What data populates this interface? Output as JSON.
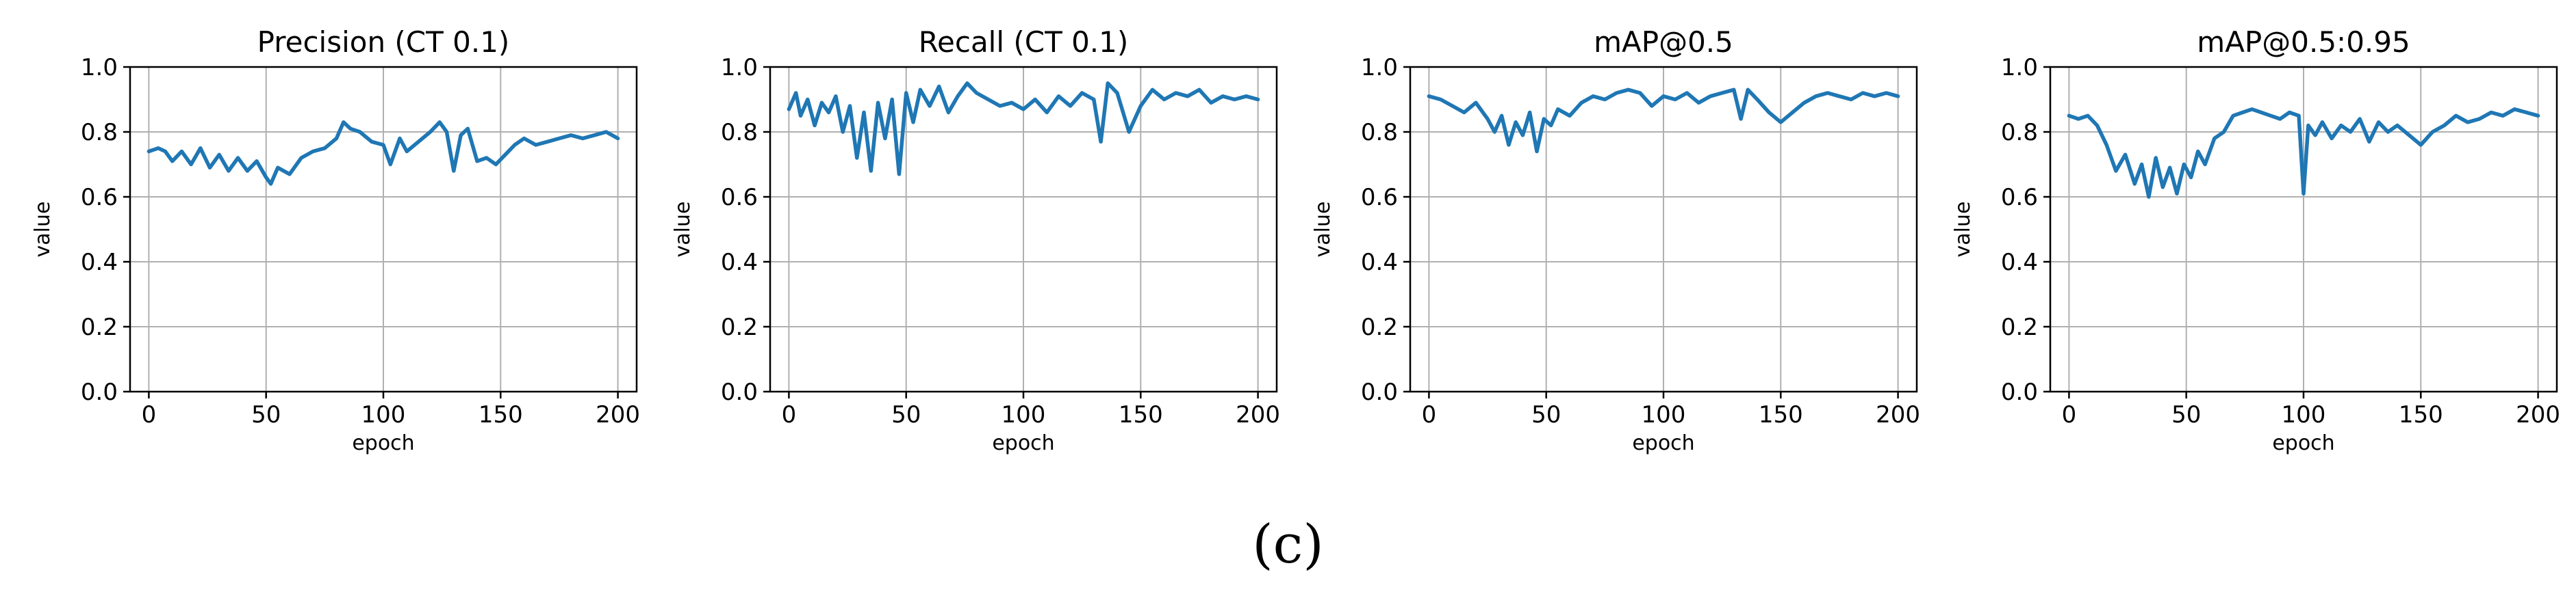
{
  "caption": "(c)",
  "colors": {
    "line": "#1f77b4",
    "grid": "#b0b0b0",
    "axis": "#000000"
  },
  "chart_data": [
    {
      "type": "line",
      "title": "Precision (CT 0.1)",
      "xlabel": "epoch",
      "ylabel": "value",
      "xlim": [
        -8,
        208
      ],
      "ylim": [
        0.0,
        1.0
      ],
      "xticks": [
        0,
        50,
        100,
        150,
        200
      ],
      "yticks": [
        0.0,
        0.2,
        0.4,
        0.6,
        0.8,
        1.0
      ],
      "grid": true,
      "series": [
        {
          "name": "Precision",
          "x": [
            0,
            4,
            7,
            10,
            14,
            18,
            22,
            26,
            30,
            34,
            38,
            42,
            46,
            50,
            52,
            55,
            60,
            65,
            70,
            75,
            80,
            83,
            86,
            90,
            95,
            100,
            103,
            107,
            110,
            115,
            120,
            124,
            127,
            130,
            133,
            136,
            140,
            144,
            148,
            152,
            156,
            160,
            165,
            170,
            175,
            180,
            185,
            190,
            195,
            200
          ],
          "values": [
            0.74,
            0.75,
            0.74,
            0.71,
            0.74,
            0.7,
            0.75,
            0.69,
            0.73,
            0.68,
            0.72,
            0.68,
            0.71,
            0.66,
            0.64,
            0.69,
            0.67,
            0.72,
            0.74,
            0.75,
            0.78,
            0.83,
            0.81,
            0.8,
            0.77,
            0.76,
            0.7,
            0.78,
            0.74,
            0.77,
            0.8,
            0.83,
            0.8,
            0.68,
            0.79,
            0.81,
            0.71,
            0.72,
            0.7,
            0.73,
            0.76,
            0.78,
            0.76,
            0.77,
            0.78,
            0.79,
            0.78,
            0.79,
            0.8,
            0.78
          ]
        }
      ]
    },
    {
      "type": "line",
      "title": "Recall (CT 0.1)",
      "xlabel": "epoch",
      "ylabel": "value",
      "xlim": [
        -8,
        208
      ],
      "ylim": [
        0.0,
        1.0
      ],
      "xticks": [
        0,
        50,
        100,
        150,
        200
      ],
      "yticks": [
        0.0,
        0.2,
        0.4,
        0.6,
        0.8,
        1.0
      ],
      "grid": true,
      "series": [
        {
          "name": "Recall",
          "x": [
            0,
            3,
            5,
            8,
            11,
            14,
            17,
            20,
            23,
            26,
            29,
            32,
            35,
            38,
            41,
            44,
            47,
            50,
            53,
            56,
            60,
            64,
            68,
            72,
            76,
            80,
            85,
            90,
            95,
            100,
            105,
            110,
            115,
            120,
            125,
            130,
            133,
            136,
            140,
            145,
            150,
            155,
            160,
            165,
            170,
            175,
            180,
            185,
            190,
            195,
            200
          ],
          "values": [
            0.87,
            0.92,
            0.85,
            0.9,
            0.82,
            0.89,
            0.86,
            0.91,
            0.8,
            0.88,
            0.72,
            0.86,
            0.68,
            0.89,
            0.78,
            0.9,
            0.67,
            0.92,
            0.83,
            0.93,
            0.88,
            0.94,
            0.86,
            0.91,
            0.95,
            0.92,
            0.9,
            0.88,
            0.89,
            0.87,
            0.9,
            0.86,
            0.91,
            0.88,
            0.92,
            0.9,
            0.77,
            0.95,
            0.92,
            0.8,
            0.88,
            0.93,
            0.9,
            0.92,
            0.91,
            0.93,
            0.89,
            0.91,
            0.9,
            0.91,
            0.9
          ]
        }
      ]
    },
    {
      "type": "line",
      "title": "mAP@0.5",
      "xlabel": "epoch",
      "ylabel": "value",
      "xlim": [
        -8,
        208
      ],
      "ylim": [
        0.0,
        1.0
      ],
      "xticks": [
        0,
        50,
        100,
        150,
        200
      ],
      "yticks": [
        0.0,
        0.2,
        0.4,
        0.6,
        0.8,
        1.0
      ],
      "grid": true,
      "series": [
        {
          "name": "mAP@0.5",
          "x": [
            0,
            5,
            10,
            15,
            20,
            25,
            28,
            31,
            34,
            37,
            40,
            43,
            46,
            49,
            52,
            55,
            60,
            65,
            70,
            75,
            80,
            85,
            90,
            95,
            100,
            105,
            110,
            115,
            120,
            125,
            130,
            133,
            136,
            140,
            145,
            150,
            155,
            160,
            165,
            170,
            175,
            180,
            185,
            190,
            195,
            200
          ],
          "values": [
            0.91,
            0.9,
            0.88,
            0.86,
            0.89,
            0.84,
            0.8,
            0.85,
            0.76,
            0.83,
            0.79,
            0.86,
            0.74,
            0.84,
            0.82,
            0.87,
            0.85,
            0.89,
            0.91,
            0.9,
            0.92,
            0.93,
            0.92,
            0.88,
            0.91,
            0.9,
            0.92,
            0.89,
            0.91,
            0.92,
            0.93,
            0.84,
            0.93,
            0.9,
            0.86,
            0.83,
            0.86,
            0.89,
            0.91,
            0.92,
            0.91,
            0.9,
            0.92,
            0.91,
            0.92,
            0.91
          ]
        }
      ]
    },
    {
      "type": "line",
      "title": "mAP@0.5:0.95",
      "xlabel": "epoch",
      "ylabel": "value",
      "xlim": [
        -8,
        208
      ],
      "ylim": [
        0.0,
        1.0
      ],
      "xticks": [
        0,
        50,
        100,
        150,
        200
      ],
      "yticks": [
        0.0,
        0.2,
        0.4,
        0.6,
        0.8,
        1.0
      ],
      "grid": true,
      "series": [
        {
          "name": "mAP@0.5:0.95",
          "x": [
            0,
            4,
            8,
            12,
            16,
            20,
            24,
            28,
            31,
            34,
            37,
            40,
            43,
            46,
            49,
            52,
            55,
            58,
            62,
            66,
            70,
            74,
            78,
            82,
            86,
            90,
            94,
            98,
            100,
            102,
            105,
            108,
            112,
            116,
            120,
            124,
            128,
            132,
            136,
            140,
            145,
            150,
            155,
            160,
            165,
            170,
            175,
            180,
            185,
            190,
            195,
            200
          ],
          "values": [
            0.85,
            0.84,
            0.85,
            0.82,
            0.76,
            0.68,
            0.73,
            0.64,
            0.7,
            0.6,
            0.72,
            0.63,
            0.69,
            0.61,
            0.7,
            0.66,
            0.74,
            0.7,
            0.78,
            0.8,
            0.85,
            0.86,
            0.87,
            0.86,
            0.85,
            0.84,
            0.86,
            0.85,
            0.61,
            0.82,
            0.79,
            0.83,
            0.78,
            0.82,
            0.8,
            0.84,
            0.77,
            0.83,
            0.8,
            0.82,
            0.79,
            0.76,
            0.8,
            0.82,
            0.85,
            0.83,
            0.84,
            0.86,
            0.85,
            0.87,
            0.86,
            0.85
          ]
        }
      ]
    }
  ]
}
